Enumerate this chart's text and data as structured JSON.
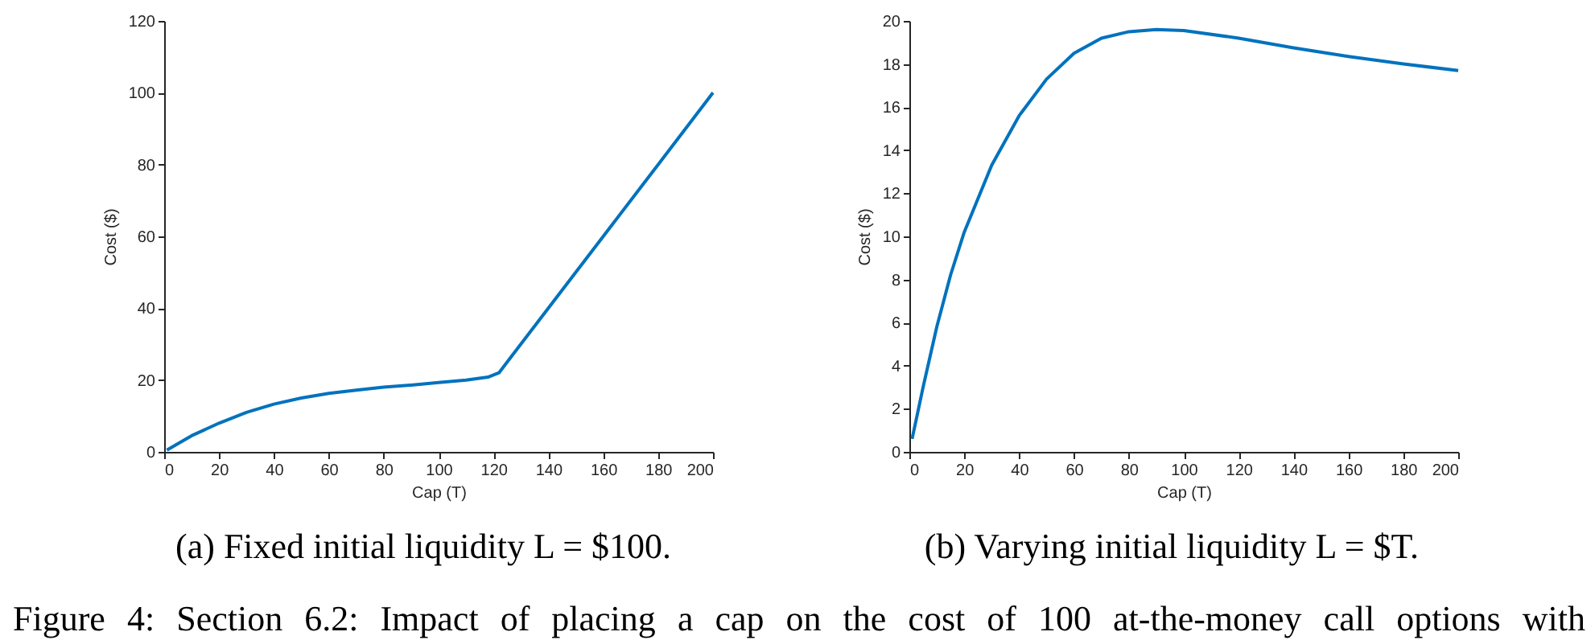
{
  "chart_data": [
    {
      "type": "line",
      "xlabel": "Cap (T)",
      "ylabel": "Cost ($)",
      "annotations": [
        "(a) Fixed initial liquidity L = $100."
      ],
      "x": [
        1,
        10,
        20,
        30,
        40,
        50,
        60,
        70,
        80,
        90,
        100,
        110,
        118,
        122,
        125,
        140,
        160,
        180,
        200
      ],
      "series": [
        {
          "color": "#0072bd",
          "values": [
            0.5,
            4.5,
            8,
            11,
            13.3,
            15,
            16.3,
            17.2,
            18,
            18.6,
            19.3,
            20,
            20.8,
            22,
            25,
            40,
            60,
            80,
            100
          ]
        }
      ],
      "xlim": [
        0,
        200
      ],
      "xticks": [
        0,
        20,
        40,
        60,
        80,
        100,
        120,
        140,
        160,
        180,
        200
      ],
      "ylim": [
        0,
        120
      ],
      "yticks": [
        0,
        20,
        40,
        60,
        80,
        100,
        120
      ],
      "grid": false
    },
    {
      "type": "line",
      "xlabel": "Cap (T)",
      "ylabel": "Cost ($)",
      "annotations": [
        "(b) Varying initial liquidity L = $T."
      ],
      "x": [
        1,
        5,
        10,
        15,
        20,
        30,
        40,
        50,
        60,
        70,
        80,
        90,
        100,
        120,
        140,
        160,
        180,
        200
      ],
      "series": [
        {
          "color": "#0072bd",
          "values": [
            0.6,
            3,
            5.8,
            8.2,
            10.2,
            13.3,
            15.6,
            17.3,
            18.5,
            19.2,
            19.5,
            19.6,
            19.55,
            19.2,
            18.75,
            18.35,
            18,
            17.7
          ]
        }
      ],
      "xlim": [
        0,
        200
      ],
      "xticks": [
        0,
        20,
        40,
        60,
        80,
        100,
        120,
        140,
        160,
        180,
        200
      ],
      "ylim": [
        0,
        20
      ],
      "yticks": [
        0,
        2,
        4,
        6,
        8,
        10,
        12,
        14,
        16,
        18,
        20
      ],
      "grid": false
    },
    {
      "type": "other",
      "annotations": [
        "Figure 4: Section 6.2: Impact of placing a cap on the cost of 100 at-the-money call options with"
      ]
    }
  ]
}
